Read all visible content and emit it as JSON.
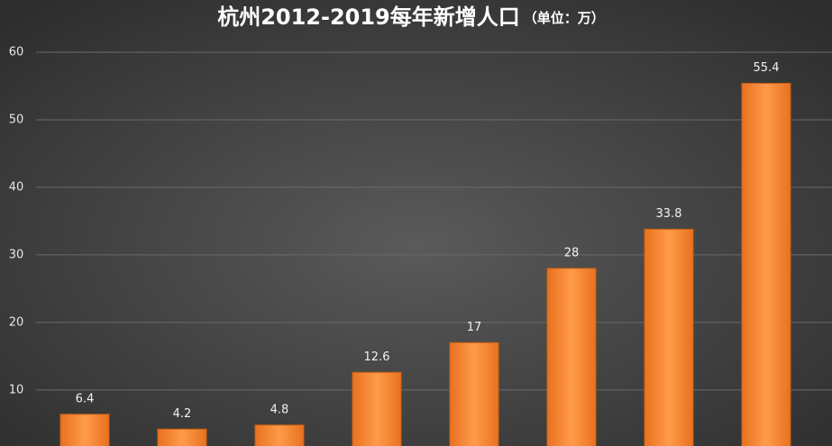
{
  "chart_data": {
    "type": "bar",
    "title": "杭州2012-2019每年新增人口",
    "subtitle": "（单位：万）",
    "categories": [
      null,
      null,
      null,
      null,
      null,
      null,
      null,
      null
    ],
    "values": [
      6.4,
      4.2,
      4.8,
      12.6,
      17,
      28,
      33.8,
      55.4
    ],
    "color": "#f58a3a",
    "ylim": [
      1.7,
      60
    ],
    "yticks": [
      10,
      20,
      30,
      40,
      50,
      60
    ],
    "grid": true
  }
}
